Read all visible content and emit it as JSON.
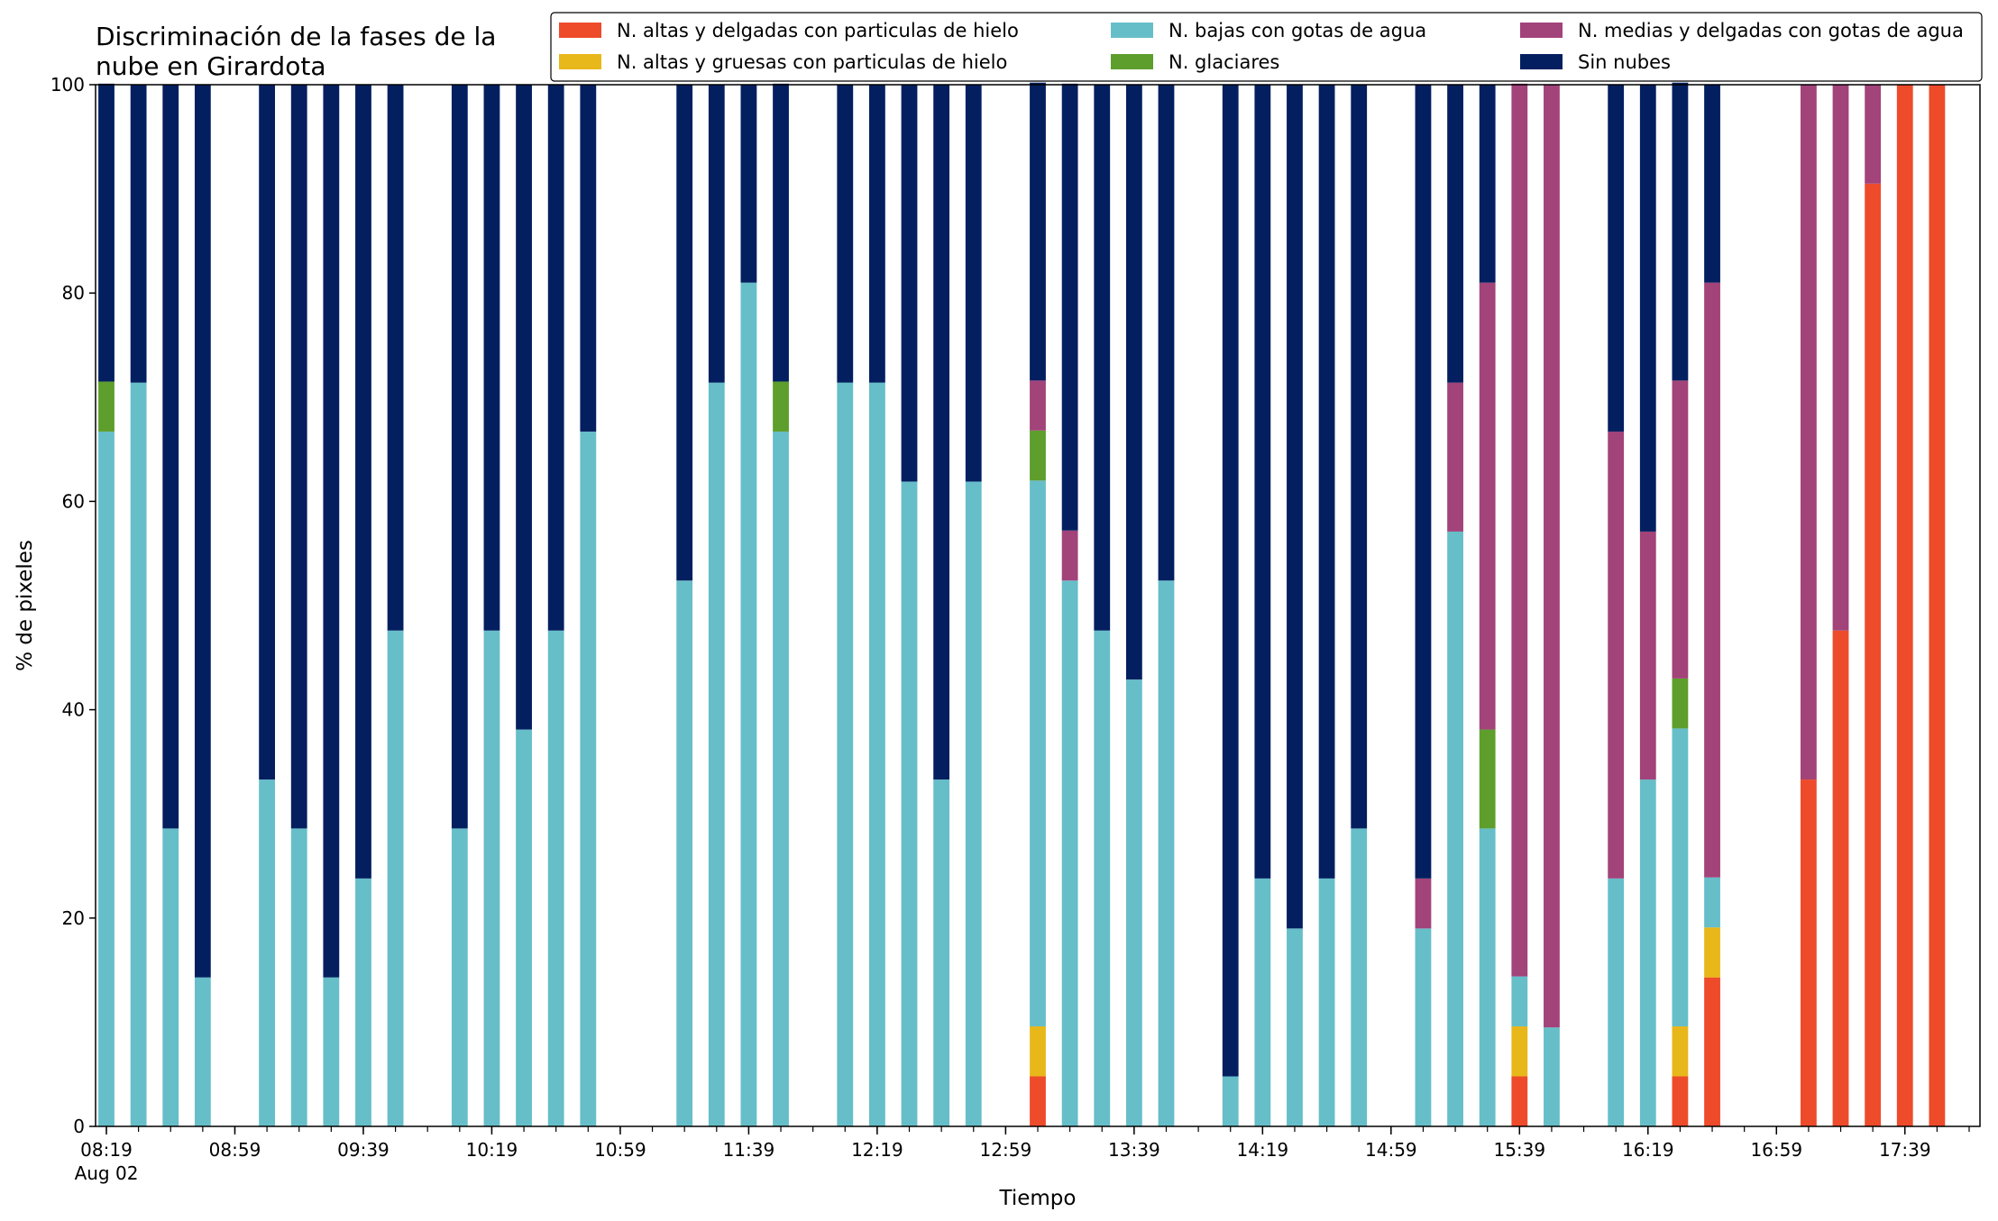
{
  "chart_data": {
    "type": "bar",
    "stacked": true,
    "title_lines": [
      "Discriminación de la fases de la",
      "nube en Girardota"
    ],
    "xlabel": "Tiempo",
    "ylabel": "% de pixeles",
    "ylim": [
      0,
      100
    ],
    "yticks": [
      0,
      20,
      40,
      60,
      80,
      100
    ],
    "grid": false,
    "legend_position": "top-right",
    "x_start": "08:19",
    "x_end": "17:59",
    "x_step_minutes": 10,
    "x_major_ticks": [
      "08:19",
      "08:59",
      "09:39",
      "10:19",
      "10:59",
      "11:39",
      "12:19",
      "12:59",
      "13:39",
      "14:19",
      "14:59",
      "15:39",
      "16:19",
      "16:59",
      "17:39"
    ],
    "x_date_label": "Aug 02",
    "series": [
      {
        "name": "N. altas y delgadas con particulas de hielo",
        "color": "#ee4b2b",
        "values": [
          {
            "t": "13:09",
            "v": 4.8
          },
          {
            "t": "15:39",
            "v": 4.8
          },
          {
            "t": "16:29",
            "v": 4.8
          },
          {
            "t": "16:39",
            "v": 14.3
          },
          {
            "t": "17:09",
            "v": 33.3
          },
          {
            "t": "17:19",
            "v": 47.6
          },
          {
            "t": "17:29",
            "v": 90.5
          },
          {
            "t": "17:39",
            "v": 100
          },
          {
            "t": "17:49",
            "v": 100
          }
        ]
      },
      {
        "name": "N. altas y gruesas con particulas de hielo",
        "color": "#e8b71a",
        "values": [
          {
            "t": "13:09",
            "v": 4.8
          },
          {
            "t": "15:39",
            "v": 4.8
          },
          {
            "t": "16:29",
            "v": 4.8
          },
          {
            "t": "16:39",
            "v": 4.8
          }
        ]
      },
      {
        "name": "N. bajas con gotas de agua",
        "color": "#66bec9",
        "values": [
          {
            "t": "08:19",
            "v": 66.7
          },
          {
            "t": "08:29",
            "v": 71.4
          },
          {
            "t": "08:39",
            "v": 28.6
          },
          {
            "t": "08:49",
            "v": 14.3
          },
          {
            "t": "09:09",
            "v": 33.3
          },
          {
            "t": "09:19",
            "v": 28.6
          },
          {
            "t": "09:29",
            "v": 14.3
          },
          {
            "t": "09:39",
            "v": 23.8
          },
          {
            "t": "09:49",
            "v": 47.6
          },
          {
            "t": "10:09",
            "v": 28.6
          },
          {
            "t": "10:19",
            "v": 47.6
          },
          {
            "t": "10:29",
            "v": 38.1
          },
          {
            "t": "10:39",
            "v": 47.6
          },
          {
            "t": "10:49",
            "v": 66.7
          },
          {
            "t": "11:19",
            "v": 52.4
          },
          {
            "t": "11:29",
            "v": 71.4
          },
          {
            "t": "11:39",
            "v": 81.0
          },
          {
            "t": "11:49",
            "v": 66.7
          },
          {
            "t": "12:09",
            "v": 71.4
          },
          {
            "t": "12:19",
            "v": 71.4
          },
          {
            "t": "12:29",
            "v": 61.9
          },
          {
            "t": "12:39",
            "v": 33.3
          },
          {
            "t": "12:49",
            "v": 61.9
          },
          {
            "t": "13:09",
            "v": 52.4
          },
          {
            "t": "13:19",
            "v": 52.4
          },
          {
            "t": "13:29",
            "v": 47.6
          },
          {
            "t": "13:39",
            "v": 42.9
          },
          {
            "t": "13:49",
            "v": 52.4
          },
          {
            "t": "14:09",
            "v": 4.8
          },
          {
            "t": "14:19",
            "v": 23.8
          },
          {
            "t": "14:29",
            "v": 19.0
          },
          {
            "t": "14:39",
            "v": 23.8
          },
          {
            "t": "14:49",
            "v": 28.6
          },
          {
            "t": "15:09",
            "v": 19.0
          },
          {
            "t": "15:19",
            "v": 57.1
          },
          {
            "t": "15:29",
            "v": 28.6
          },
          {
            "t": "15:39",
            "v": 4.8
          },
          {
            "t": "15:49",
            "v": 9.5
          },
          {
            "t": "16:09",
            "v": 23.8
          },
          {
            "t": "16:19",
            "v": 33.3
          },
          {
            "t": "16:29",
            "v": 28.6
          },
          {
            "t": "16:39",
            "v": 4.8
          }
        ]
      },
      {
        "name": "N. glaciares",
        "color": "#5e9e2c",
        "values": [
          {
            "t": "08:19",
            "v": 4.8
          },
          {
            "t": "11:49",
            "v": 4.8
          },
          {
            "t": "13:09",
            "v": 4.8
          },
          {
            "t": "15:29",
            "v": 9.5
          },
          {
            "t": "16:29",
            "v": 4.8
          }
        ]
      },
      {
        "name": "N. medias y delgadas con gotas de agua",
        "color": "#a2437a",
        "values": [
          {
            "t": "13:09",
            "v": 4.8
          },
          {
            "t": "13:19",
            "v": 4.8
          },
          {
            "t": "15:09",
            "v": 4.8
          },
          {
            "t": "15:19",
            "v": 14.3
          },
          {
            "t": "15:29",
            "v": 42.9
          },
          {
            "t": "15:39",
            "v": 85.7
          },
          {
            "t": "15:49",
            "v": 90.5
          },
          {
            "t": "16:09",
            "v": 42.9
          },
          {
            "t": "16:19",
            "v": 23.8
          },
          {
            "t": "16:29",
            "v": 28.6
          },
          {
            "t": "16:39",
            "v": 57.1
          },
          {
            "t": "17:09",
            "v": 66.7
          },
          {
            "t": "17:19",
            "v": 52.4
          },
          {
            "t": "17:29",
            "v": 9.5
          }
        ]
      },
      {
        "name": "Sin nubes",
        "color": "#041f60",
        "values": [
          {
            "t": "08:19",
            "v": 28.6
          },
          {
            "t": "08:29",
            "v": 28.6
          },
          {
            "t": "08:39",
            "v": 71.4
          },
          {
            "t": "08:49",
            "v": 85.7
          },
          {
            "t": "09:09",
            "v": 66.7
          },
          {
            "t": "09:19",
            "v": 71.4
          },
          {
            "t": "09:29",
            "v": 85.7
          },
          {
            "t": "09:39",
            "v": 76.2
          },
          {
            "t": "09:49",
            "v": 52.4
          },
          {
            "t": "10:09",
            "v": 71.4
          },
          {
            "t": "10:19",
            "v": 52.4
          },
          {
            "t": "10:29",
            "v": 61.9
          },
          {
            "t": "10:39",
            "v": 52.4
          },
          {
            "t": "10:49",
            "v": 33.3
          },
          {
            "t": "11:19",
            "v": 47.6
          },
          {
            "t": "11:29",
            "v": 28.6
          },
          {
            "t": "11:39",
            "v": 19.0
          },
          {
            "t": "11:49",
            "v": 28.6
          },
          {
            "t": "12:09",
            "v": 28.6
          },
          {
            "t": "12:19",
            "v": 28.6
          },
          {
            "t": "12:29",
            "v": 38.1
          },
          {
            "t": "12:39",
            "v": 66.7
          },
          {
            "t": "12:49",
            "v": 38.1
          },
          {
            "t": "13:09",
            "v": 28.6
          },
          {
            "t": "13:19",
            "v": 42.9
          },
          {
            "t": "13:29",
            "v": 52.4
          },
          {
            "t": "13:39",
            "v": 57.1
          },
          {
            "t": "13:49",
            "v": 47.6
          },
          {
            "t": "14:09",
            "v": 95.2
          },
          {
            "t": "14:19",
            "v": 76.2
          },
          {
            "t": "14:29",
            "v": 81.0
          },
          {
            "t": "14:39",
            "v": 76.2
          },
          {
            "t": "14:49",
            "v": 71.4
          },
          {
            "t": "15:09",
            "v": 76.2
          },
          {
            "t": "15:19",
            "v": 28.6
          },
          {
            "t": "15:29",
            "v": 19.0
          },
          {
            "t": "16:09",
            "v": 33.3
          },
          {
            "t": "16:19",
            "v": 42.9
          },
          {
            "t": "16:29",
            "v": 28.6
          },
          {
            "t": "16:39",
            "v": 19.0
          }
        ]
      }
    ]
  }
}
